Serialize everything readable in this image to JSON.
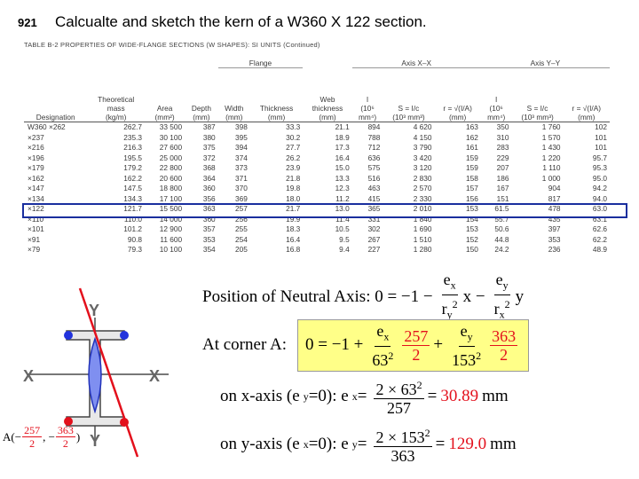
{
  "header": {
    "number": "921",
    "title": "Calcualte and sketch the kern of a W360 X 122 section."
  },
  "table": {
    "caption": "TABLE B-2   PROPERTIES OF WIDE-FLANGE SECTIONS (W SHAPES): SI UNITS (Continued)",
    "columns": [
      {
        "lines": [
          "Designation"
        ]
      },
      {
        "lines": [
          "Theoretical",
          "mass",
          "(kg/m)"
        ]
      },
      {
        "lines": [
          "Area",
          "(mm²)"
        ]
      },
      {
        "lines": [
          "Depth",
          "(mm)"
        ]
      },
      {
        "group": "Flange",
        "columns": [
          {
            "lines": [
              "Width",
              "(mm)"
            ]
          },
          {
            "lines": [
              "Thickness",
              "(mm)"
            ]
          }
        ]
      },
      {
        "lines": [
          "Web",
          "thickness",
          "(mm)"
        ]
      },
      {
        "group": "Axis X–X",
        "columns": [
          {
            "lines": [
              "I",
              "(10⁶",
              "mm⁴)"
            ]
          },
          {
            "lines": [
              "S = I/c",
              "(10³ mm³)"
            ]
          },
          {
            "lines": [
              "r = √(I/A)",
              "(mm)"
            ]
          }
        ]
      },
      {
        "group": "Axis Y–Y",
        "columns": [
          {
            "lines": [
              "I",
              "(10⁶",
              "mm⁴)"
            ]
          },
          {
            "lines": [
              "S = I/c",
              "(10³ mm³)"
            ]
          },
          {
            "lines": [
              "r = √(I/A)",
              "(mm)"
            ]
          }
        ]
      }
    ],
    "rows": [
      [
        "W360 ×262",
        "262.7",
        "33 500",
        "387",
        "398",
        "33.3",
        "21.1",
        "894",
        "4 620",
        "163",
        "350",
        "1 760",
        "102"
      ],
      [
        "×237",
        "235.3",
        "30 100",
        "380",
        "395",
        "30.2",
        "18.9",
        "788",
        "4 150",
        "162",
        "310",
        "1 570",
        "101"
      ],
      [
        "×216",
        "216.3",
        "27 600",
        "375",
        "394",
        "27.7",
        "17.3",
        "712",
        "3 790",
        "161",
        "283",
        "1 430",
        "101"
      ],
      [
        "×196",
        "195.5",
        "25 000",
        "372",
        "374",
        "26.2",
        "16.4",
        "636",
        "3 420",
        "159",
        "229",
        "1 220",
        "95.7"
      ],
      [
        "×179",
        "179.2",
        "22 800",
        "368",
        "373",
        "23.9",
        "15.0",
        "575",
        "3 120",
        "159",
        "207",
        "1 110",
        "95.3"
      ],
      [
        "×162",
        "162.2",
        "20 600",
        "364",
        "371",
        "21.8",
        "13.3",
        "516",
        "2 830",
        "158",
        "186",
        "1 000",
        "95.0"
      ],
      [
        "×147",
        "147.5",
        "18 800",
        "360",
        "370",
        "19.8",
        "12.3",
        "463",
        "2 570",
        "157",
        "167",
        "904",
        "94.2"
      ],
      [
        "×134",
        "134.3",
        "17 100",
        "356",
        "369",
        "18.0",
        "11.2",
        "415",
        "2 330",
        "156",
        "151",
        "817",
        "94.0"
      ],
      [
        "×122",
        "121.7",
        "15 500",
        "363",
        "257",
        "21.7",
        "13.0",
        "365",
        "2 010",
        "153",
        "61.5",
        "478",
        "63.0"
      ],
      [
        "×110",
        "110.0",
        "14 000",
        "360",
        "256",
        "19.9",
        "11.4",
        "331",
        "1 840",
        "154",
        "55.7",
        "435",
        "63.1"
      ],
      [
        "×101",
        "101.2",
        "12 900",
        "357",
        "255",
        "18.3",
        "10.5",
        "302",
        "1 690",
        "153",
        "50.6",
        "397",
        "62.6"
      ],
      [
        "×91",
        "90.8",
        "11 600",
        "353",
        "254",
        "16.4",
        "9.5",
        "267",
        "1 510",
        "152",
        "44.8",
        "353",
        "62.2"
      ],
      [
        "×79",
        "79.3",
        "10 100",
        "354",
        "205",
        "16.8",
        "9.4",
        "227",
        "1 280",
        "150",
        "24.2",
        "236",
        "48.9"
      ]
    ]
  },
  "equations": [
    {
      "tokens": [
        "Position of Neutral Axis:  0 = −1 −",
        {
          "num": [
            "e",
            {
              "sub": "x"
            }
          ],
          "den": [
            "r",
            {
              "sub": "y"
            },
            {
              "sup": "2"
            }
          ]
        },
        "x −",
        {
          "num": [
            "e",
            {
              "sub": "y"
            }
          ],
          "den": [
            "r",
            {
              "sub": "x"
            },
            {
              "sup": "2"
            }
          ]
        },
        "y"
      ]
    },
    {
      "label": "At corner A:",
      "highlight": "#ffff88",
      "tokens": [
        "0 = −1 +",
        {
          "num": [
            "e",
            {
              "sub": "x"
            }
          ],
          "den": [
            "63",
            {
              "sup": "2"
            }
          ]
        },
        {
          "num": [
            "257"
          ],
          "den": [
            "2"
          ],
          "color": "#e3101c"
        },
        "+",
        {
          "num": [
            "e",
            {
              "sub": "y"
            }
          ],
          "den": [
            "153",
            {
              "sup": "2"
            }
          ]
        },
        {
          "num": [
            "363"
          ],
          "den": [
            "2"
          ],
          "color": "#e3101c"
        }
      ]
    },
    {
      "tokens": [
        "on x-axis (e",
        {
          "sub": "y"
        },
        "=0):  e",
        {
          "sub": "x"
        },
        " =",
        {
          "num": [
            "2 × 63",
            {
              "sup": "2"
            }
          ],
          "den": [
            "257"
          ]
        },
        "=",
        {
          "text": "30.89",
          "color": "#e3101c"
        },
        "mm"
      ]
    },
    {
      "tokens": [
        "on y-axis (e",
        {
          "sub": "x"
        },
        "=0):  e",
        {
          "sub": "y"
        },
        " =",
        {
          "num": [
            "2 × 153",
            {
              "sup": "2"
            }
          ],
          "den": [
            "363"
          ]
        },
        "=",
        {
          "text": "129.0",
          "color": "#e3101c"
        },
        "mm"
      ]
    }
  ],
  "diagram": {
    "axis_labels": [
      "Y",
      "X",
      "X",
      "Y"
    ],
    "point_label": [
      "A(−",
      {
        "num": [
          "257"
        ],
        "den": [
          "2"
        ],
        "color": "#e3101c"
      },
      ", −",
      {
        "num": [
          "363"
        ],
        "den": [
          "2"
        ],
        "color": "#e3101c"
      },
      ")"
    ]
  }
}
